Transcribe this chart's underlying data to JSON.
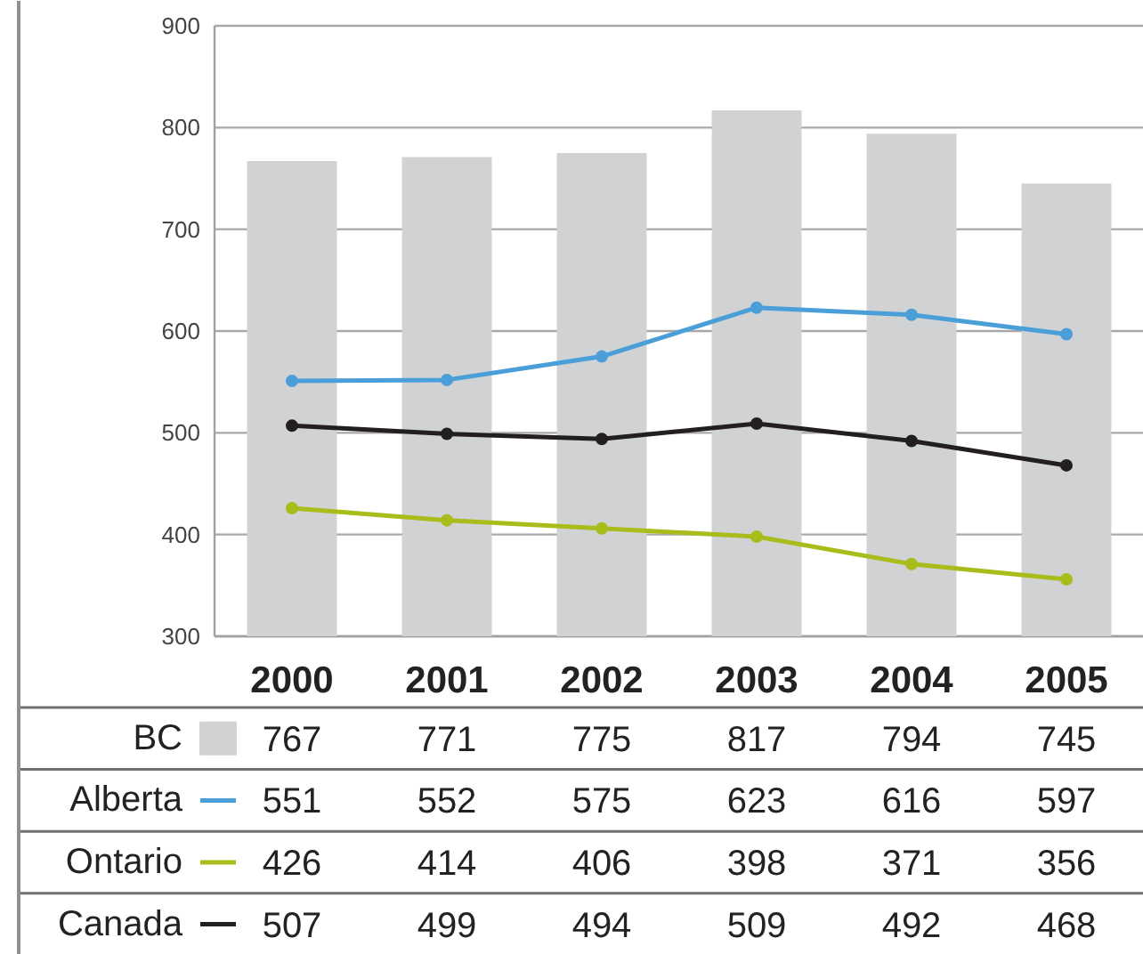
{
  "chart_data": {
    "type": "bar",
    "categories": [
      "2000",
      "2001",
      "2002",
      "2003",
      "2004",
      "2005"
    ],
    "ylim": [
      300,
      900
    ],
    "yticks": [
      300,
      400,
      500,
      600,
      700,
      800,
      900
    ],
    "grid": "y",
    "legend": "bottom",
    "data_labels": true,
    "marker": "circle",
    "series": [
      {
        "name": "BC",
        "color": "#d1d2d4",
        "values": [
          767,
          771,
          775,
          817,
          794,
          745
        ]
      },
      {
        "name": "Alberta",
        "type": "line",
        "color": "#4b9fd9",
        "values": [
          551,
          552,
          575,
          623,
          616,
          597
        ]
      },
      {
        "name": "Ontario",
        "type": "line",
        "color": "#a8bd1c",
        "values": [
          426,
          414,
          406,
          398,
          371,
          356
        ]
      },
      {
        "name": "Canada",
        "type": "line",
        "color": "#231f20",
        "values": [
          507,
          499,
          494,
          509,
          492,
          468
        ]
      }
    ]
  }
}
